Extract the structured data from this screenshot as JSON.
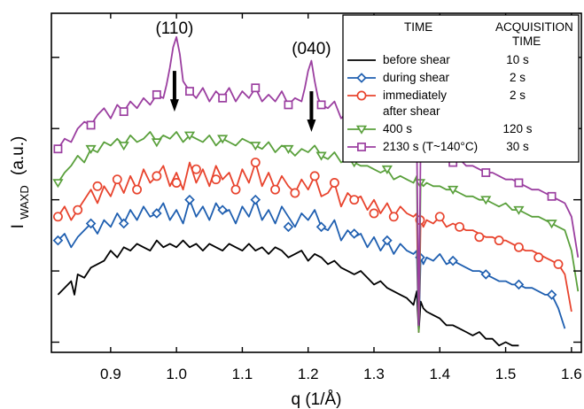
{
  "chart_data": {
    "type": "line",
    "xlabel": "q (1/Å)",
    "ylabel_main": "I",
    "ylabel_sub": "WAXD",
    "ylabel_unit": "(a.u.)",
    "xlim": [
      0.81,
      1.615
    ],
    "x_ticks": [
      0.9,
      1.0,
      1.1,
      1.2,
      1.3,
      1.4,
      1.5,
      1.6
    ],
    "x_tick_labels": [
      "0.9",
      "1.0",
      "1.1",
      "1.2",
      "1.3",
      "1.4",
      "1.5",
      "1.6"
    ],
    "ylim": [
      0,
      100
    ],
    "y_ticks": [
      3,
      24,
      45,
      66,
      87
    ],
    "legend": {
      "header_time": "TIME",
      "header_acq_line1": "ACQUISITION",
      "header_acq_line2": "TIME",
      "rows": [
        {
          "series": 0,
          "label": "before shear",
          "acq": "10 s"
        },
        {
          "series": 1,
          "label": "during shear",
          "acq": "2 s"
        },
        {
          "series": 2,
          "label": "immediately",
          "label2": "after shear",
          "acq": "2 s"
        },
        {
          "series": 3,
          "label": "400 s",
          "acq": "120 s"
        },
        {
          "series": 4,
          "label": "2130 s (T~140°C)",
          "acq": "30 s"
        }
      ]
    },
    "annotations": [
      {
        "text": "(110)",
        "x": 0.997,
        "y_text": 94,
        "arrow_from": 83,
        "arrow_to": 71
      },
      {
        "text": "(040)",
        "x": 1.205,
        "y_text": 88,
        "arrow_from": 77,
        "arrow_to": 65
      }
    ],
    "series": [
      {
        "color": "#000000",
        "marker": "none",
        "x": [
          0.82,
          0.83,
          0.84,
          0.845,
          0.85,
          0.86,
          0.87,
          0.88,
          0.89,
          0.9,
          0.91,
          0.92,
          0.93,
          0.94,
          0.95,
          0.96,
          0.97,
          0.98,
          0.99,
          1.0,
          1.01,
          1.02,
          1.03,
          1.04,
          1.05,
          1.06,
          1.07,
          1.08,
          1.09,
          1.1,
          1.11,
          1.12,
          1.13,
          1.14,
          1.15,
          1.16,
          1.17,
          1.18,
          1.19,
          1.2,
          1.21,
          1.22,
          1.23,
          1.24,
          1.25,
          1.26,
          1.27,
          1.28,
          1.29,
          1.3,
          1.31,
          1.32,
          1.33,
          1.34,
          1.35,
          1.36,
          1.365,
          1.368,
          1.371,
          1.375,
          1.38,
          1.39,
          1.4,
          1.41,
          1.42,
          1.43,
          1.44,
          1.45,
          1.46,
          1.47,
          1.48,
          1.49,
          1.5,
          1.51,
          1.52
        ],
        "y": [
          17,
          19,
          21,
          17,
          23,
          22,
          25,
          26,
          27,
          30,
          28,
          31,
          30,
          32,
          31,
          30,
          33,
          31,
          32,
          31,
          33,
          31,
          32,
          30,
          32,
          31,
          30,
          32,
          31,
          30,
          32,
          30,
          31,
          29,
          31,
          30,
          28,
          29,
          30,
          27,
          29,
          28,
          26,
          27,
          25,
          24,
          23,
          24,
          22,
          20,
          21,
          19,
          18,
          17,
          16,
          14,
          18,
          6,
          15,
          13,
          12,
          11,
          10,
          8,
          8,
          7,
          6,
          5,
          6,
          4,
          4,
          2,
          3,
          2,
          2
        ]
      },
      {
        "color": "#1f5fb0",
        "marker": "diamond",
        "x": [
          0.82,
          0.83,
          0.84,
          0.85,
          0.86,
          0.87,
          0.88,
          0.89,
          0.9,
          0.91,
          0.92,
          0.93,
          0.94,
          0.95,
          0.96,
          0.97,
          0.98,
          0.99,
          1.0,
          1.01,
          1.02,
          1.03,
          1.04,
          1.05,
          1.06,
          1.07,
          1.08,
          1.09,
          1.1,
          1.11,
          1.12,
          1.13,
          1.14,
          1.15,
          1.16,
          1.17,
          1.18,
          1.19,
          1.2,
          1.21,
          1.22,
          1.23,
          1.24,
          1.25,
          1.26,
          1.27,
          1.28,
          1.29,
          1.3,
          1.31,
          1.32,
          1.33,
          1.34,
          1.35,
          1.36,
          1.365,
          1.368,
          1.371,
          1.375,
          1.38,
          1.39,
          1.4,
          1.41,
          1.42,
          1.43,
          1.44,
          1.45,
          1.46,
          1.47,
          1.48,
          1.49,
          1.5,
          1.51,
          1.52,
          1.53,
          1.54,
          1.55,
          1.56,
          1.57,
          1.58,
          1.59
        ],
        "y": [
          33,
          35,
          31,
          34,
          36,
          38,
          35,
          39,
          37,
          41,
          38,
          42,
          39,
          43,
          40,
          41,
          44,
          39,
          42,
          38,
          45,
          40,
          43,
          39,
          44,
          41,
          42,
          38,
          43,
          40,
          45,
          39,
          42,
          38,
          43,
          40,
          37,
          41,
          39,
          42,
          37,
          36,
          39,
          33,
          36,
          34,
          35,
          31,
          34,
          30,
          33,
          29,
          32,
          30,
          29,
          30,
          6,
          28,
          26,
          28,
          27,
          29,
          26,
          27,
          26,
          25,
          24,
          24,
          23,
          22,
          21,
          21,
          20,
          20,
          19,
          19,
          18,
          17,
          17,
          13,
          7
        ],
        "marker_x": [
          0.82,
          0.87,
          0.92,
          0.97,
          1.02,
          1.07,
          1.12,
          1.17,
          1.22,
          1.27,
          1.32,
          1.37,
          1.42,
          1.47,
          1.52,
          1.57
        ],
        "marker_y": [
          33,
          38,
          38,
          41,
          45,
          42,
          45,
          37,
          37,
          35,
          33,
          28,
          27,
          23,
          20,
          17
        ]
      },
      {
        "color": "#e8442e",
        "marker": "circle",
        "x": [
          0.82,
          0.83,
          0.84,
          0.85,
          0.86,
          0.87,
          0.88,
          0.89,
          0.9,
          0.91,
          0.92,
          0.93,
          0.94,
          0.95,
          0.96,
          0.97,
          0.98,
          0.99,
          1.0,
          1.01,
          1.02,
          1.03,
          1.04,
          1.05,
          1.06,
          1.07,
          1.08,
          1.09,
          1.1,
          1.11,
          1.12,
          1.13,
          1.14,
          1.15,
          1.16,
          1.17,
          1.18,
          1.19,
          1.2,
          1.21,
          1.22,
          1.23,
          1.24,
          1.25,
          1.26,
          1.27,
          1.28,
          1.29,
          1.3,
          1.31,
          1.32,
          1.33,
          1.34,
          1.35,
          1.36,
          1.365,
          1.368,
          1.371,
          1.375,
          1.38,
          1.39,
          1.4,
          1.41,
          1.42,
          1.43,
          1.44,
          1.45,
          1.46,
          1.47,
          1.48,
          1.49,
          1.5,
          1.51,
          1.52,
          1.53,
          1.54,
          1.55,
          1.56,
          1.57,
          1.58,
          1.59,
          1.6
        ],
        "y": [
          40,
          43,
          39,
          42,
          45,
          48,
          44,
          49,
          46,
          51,
          47,
          52,
          48,
          54,
          50,
          52,
          55,
          49,
          53,
          48,
          56,
          50,
          54,
          49,
          55,
          51,
          53,
          48,
          54,
          50,
          56,
          49,
          53,
          48,
          52,
          49,
          47,
          51,
          48,
          52,
          46,
          47,
          50,
          43,
          47,
          45,
          46,
          42,
          45,
          41,
          44,
          40,
          43,
          41,
          40,
          41,
          6,
          39,
          37,
          39,
          38,
          40,
          37,
          38,
          37,
          36,
          36,
          35,
          34,
          34,
          33,
          33,
          32,
          31,
          30,
          30,
          29,
          28,
          27,
          26,
          23,
          12
        ],
        "marker_x": [
          0.82,
          0.85,
          0.88,
          0.91,
          0.94,
          0.97,
          1.0,
          1.03,
          1.06,
          1.09,
          1.12,
          1.15,
          1.18,
          1.21,
          1.24,
          1.27,
          1.3,
          1.33,
          1.37,
          1.4,
          1.43,
          1.46,
          1.49,
          1.52,
          1.55,
          1.58
        ],
        "marker_y": [
          40,
          42,
          49,
          51,
          48,
          52,
          50,
          54,
          51,
          48,
          56,
          48,
          47,
          52,
          50,
          45,
          41,
          40,
          39,
          40,
          37,
          34,
          33,
          31,
          28,
          26
        ]
      },
      {
        "color": "#5aa03c",
        "marker": "triangle",
        "x": [
          0.82,
          0.83,
          0.84,
          0.85,
          0.86,
          0.87,
          0.88,
          0.89,
          0.9,
          0.91,
          0.92,
          0.93,
          0.94,
          0.95,
          0.96,
          0.97,
          0.98,
          0.99,
          1.0,
          1.01,
          1.02,
          1.03,
          1.04,
          1.05,
          1.06,
          1.07,
          1.08,
          1.09,
          1.1,
          1.11,
          1.12,
          1.13,
          1.14,
          1.15,
          1.16,
          1.17,
          1.18,
          1.19,
          1.2,
          1.21,
          1.22,
          1.23,
          1.24,
          1.25,
          1.26,
          1.27,
          1.28,
          1.29,
          1.3,
          1.31,
          1.32,
          1.33,
          1.34,
          1.35,
          1.36,
          1.365,
          1.368,
          1.371,
          1.375,
          1.38,
          1.39,
          1.4,
          1.41,
          1.42,
          1.43,
          1.44,
          1.45,
          1.46,
          1.47,
          1.48,
          1.49,
          1.5,
          1.51,
          1.52,
          1.53,
          1.54,
          1.55,
          1.56,
          1.57,
          1.58,
          1.59,
          1.6,
          1.61
        ],
        "y": [
          50,
          53,
          55,
          58,
          56,
          60,
          59,
          62,
          61,
          63,
          61,
          64,
          62,
          63,
          65,
          62,
          64,
          63,
          65,
          62,
          64,
          63,
          62,
          64,
          61,
          63,
          62,
          61,
          63,
          62,
          61,
          60,
          62,
          59,
          61,
          60,
          58,
          60,
          59,
          61,
          58,
          57,
          59,
          56,
          57,
          56,
          55,
          55,
          54,
          53,
          54,
          51,
          52,
          51,
          50,
          52,
          6,
          50,
          49,
          50,
          49,
          49,
          48,
          48,
          47,
          46,
          46,
          45,
          45,
          44,
          43,
          44,
          42,
          42,
          41,
          40,
          40,
          39,
          38,
          37,
          36,
          30,
          18
        ],
        "marker_x": [
          0.82,
          0.87,
          0.92,
          0.97,
          1.02,
          1.07,
          1.12,
          1.17,
          1.22,
          1.27,
          1.32,
          1.37,
          1.42,
          1.47,
          1.52,
          1.57
        ],
        "marker_y": [
          50,
          60,
          61,
          62,
          64,
          63,
          61,
          60,
          58,
          56,
          54,
          50,
          48,
          45,
          42,
          38
        ]
      },
      {
        "color": "#9b3fa0",
        "marker": "square",
        "x": [
          0.82,
          0.83,
          0.84,
          0.85,
          0.86,
          0.87,
          0.88,
          0.89,
          0.9,
          0.91,
          0.92,
          0.93,
          0.94,
          0.95,
          0.96,
          0.97,
          0.98,
          0.985,
          0.99,
          0.995,
          1.0,
          1.005,
          1.01,
          1.02,
          1.03,
          1.04,
          1.05,
          1.06,
          1.07,
          1.08,
          1.09,
          1.1,
          1.11,
          1.12,
          1.13,
          1.14,
          1.15,
          1.16,
          1.17,
          1.18,
          1.19,
          1.195,
          1.2,
          1.205,
          1.21,
          1.215,
          1.22,
          1.23,
          1.24,
          1.25,
          1.26,
          1.27,
          1.28,
          1.29,
          1.3,
          1.31,
          1.32,
          1.33,
          1.34,
          1.345,
          1.35,
          1.36,
          1.365,
          1.368,
          1.371,
          1.375,
          1.38,
          1.39,
          1.4,
          1.41,
          1.42,
          1.43,
          1.44,
          1.45,
          1.46,
          1.47,
          1.48,
          1.49,
          1.5,
          1.51,
          1.52,
          1.53,
          1.54,
          1.55,
          1.56,
          1.57,
          1.58,
          1.59,
          1.6,
          1.61
        ],
        "y": [
          60,
          63,
          62,
          66,
          68,
          67,
          70,
          72,
          69,
          73,
          71,
          74,
          72,
          75,
          73,
          76,
          75,
          79,
          84,
          90,
          93,
          88,
          80,
          77,
          75,
          78,
          74,
          77,
          75,
          78,
          74,
          77,
          75,
          78,
          74,
          76,
          74,
          77,
          73,
          75,
          74,
          78,
          83,
          86,
          80,
          75,
          73,
          72,
          74,
          69,
          71,
          70,
          69,
          67,
          68,
          65,
          66,
          64,
          66,
          71,
          68,
          62,
          63,
          8,
          62,
          60,
          58,
          59,
          57,
          58,
          56,
          57,
          55,
          55,
          54,
          53,
          53,
          52,
          51,
          51,
          50,
          49,
          48,
          48,
          47,
          46,
          45,
          44,
          40,
          28
        ],
        "marker_x": [
          0.82,
          0.87,
          0.92,
          0.97,
          1.02,
          1.07,
          1.12,
          1.17,
          1.22,
          1.27,
          1.32,
          1.37,
          1.42,
          1.47,
          1.52,
          1.57
        ],
        "marker_y": [
          60,
          67,
          71,
          76,
          77,
          75,
          78,
          73,
          73,
          70,
          66,
          62,
          56,
          53,
          50,
          46
        ]
      }
    ]
  }
}
